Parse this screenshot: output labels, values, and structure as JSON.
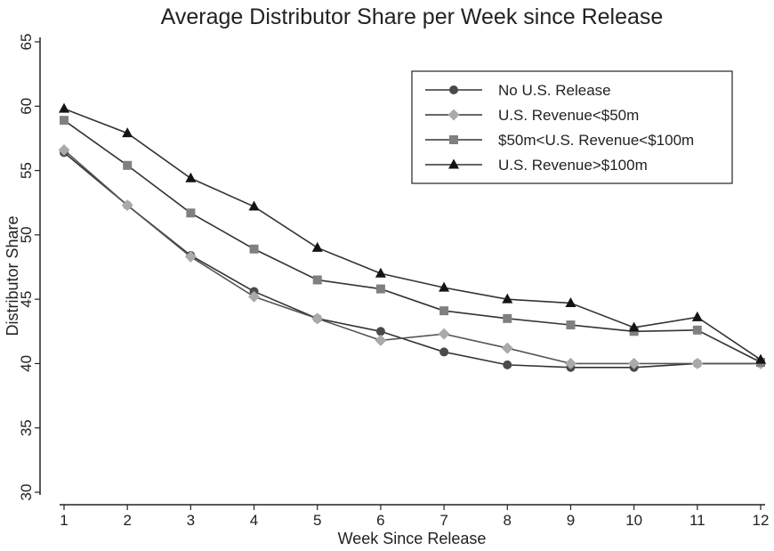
{
  "chart_data": {
    "type": "line",
    "title": "Average Distributor Share per Week since Release",
    "xlabel": "Week Since Release",
    "ylabel": "Distributor Share",
    "x": [
      1,
      2,
      3,
      4,
      5,
      6,
      7,
      8,
      9,
      10,
      11,
      12
    ],
    "xlim": [
      1,
      12
    ],
    "ylim": [
      30,
      65
    ],
    "y_ticks": [
      30,
      35,
      40,
      45,
      50,
      55,
      60,
      65
    ],
    "grid": false,
    "legend_position": "top-right",
    "series": [
      {
        "name": "No U.S. Release",
        "marker": "circle",
        "color": "#4a4a4a",
        "values": [
          56.4,
          52.3,
          48.4,
          45.6,
          43.5,
          42.5,
          40.9,
          39.9,
          39.7,
          39.7,
          40.0,
          40.0
        ]
      },
      {
        "name": "U.S.  Revenue<$50m",
        "marker": "diamond",
        "color": "#aaaaaa",
        "values": [
          56.6,
          52.3,
          48.3,
          45.2,
          43.5,
          41.8,
          42.3,
          41.2,
          40.0,
          40.0,
          40.0,
          40.0
        ]
      },
      {
        "name": "$50m<U.S. Revenue<$100m",
        "marker": "square",
        "color": "#808080",
        "values": [
          58.9,
          55.4,
          51.7,
          48.9,
          46.5,
          45.8,
          44.1,
          43.5,
          43.0,
          42.5,
          42.6,
          40.1
        ]
      },
      {
        "name": "U.S.  Revenue>$100m",
        "marker": "triangle",
        "color": "#141414",
        "values": [
          59.8,
          57.9,
          54.4,
          52.2,
          49.0,
          47.0,
          45.9,
          45.0,
          44.7,
          42.8,
          43.6,
          40.3
        ]
      }
    ]
  }
}
